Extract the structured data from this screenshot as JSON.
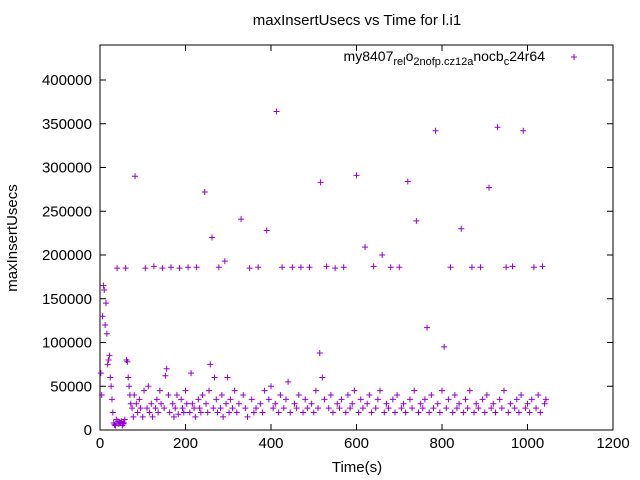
{
  "chart_data": {
    "type": "scatter",
    "title": "maxInsertUsecs vs Time for l.i1",
    "xlabel": "Time(s)",
    "ylabel": "maxInsertUsecs",
    "xlim": [
      0,
      1200
    ],
    "ylim": [
      0,
      440000
    ],
    "xticks": [
      0,
      200,
      400,
      600,
      800,
      1000,
      1200
    ],
    "yticks": [
      0,
      50000,
      100000,
      150000,
      200000,
      250000,
      300000,
      350000,
      400000
    ],
    "grid": false,
    "legend_position": "top-right",
    "marker": "plus",
    "color": "#9400d3",
    "series": [
      {
        "name": "my8407_rel_o2nofp.cz12a_nocb_c24r64",
        "name_parts": [
          {
            "t": "my8407",
            "sub": false
          },
          {
            "t": "rel",
            "sub": true
          },
          {
            "t": "o",
            "sub": false
          },
          {
            "t": "2nofp.cz12a",
            "sub": true
          },
          {
            "t": "nocb",
            "sub": false
          },
          {
            "t": "c",
            "sub": true
          },
          {
            "t": "24r64",
            "sub": false
          }
        ],
        "points": [
          [
            2,
            65000
          ],
          [
            4,
            40000
          ],
          [
            6,
            130000
          ],
          [
            8,
            165000
          ],
          [
            10,
            160000
          ],
          [
            12,
            120000
          ],
          [
            14,
            145000
          ],
          [
            16,
            110000
          ],
          [
            18,
            75000
          ],
          [
            20,
            80000
          ],
          [
            22,
            85000
          ],
          [
            24,
            60000
          ],
          [
            26,
            50000
          ],
          [
            28,
            35000
          ],
          [
            30,
            20000
          ],
          [
            32,
            8000
          ],
          [
            34,
            6000
          ],
          [
            36,
            5000
          ],
          [
            38,
            12000
          ],
          [
            40,
            185000
          ],
          [
            42,
            10000
          ],
          [
            44,
            7000
          ],
          [
            46,
            9000
          ],
          [
            48,
            8000
          ],
          [
            50,
            10000
          ],
          [
            52,
            5000
          ],
          [
            54,
            7000
          ],
          [
            56,
            8000
          ],
          [
            58,
            12000
          ],
          [
            60,
            185000
          ],
          [
            62,
            80000
          ],
          [
            64,
            78000
          ],
          [
            66,
            60000
          ],
          [
            68,
            50000
          ],
          [
            70,
            40000
          ],
          [
            72,
            30000
          ],
          [
            75,
            25000
          ],
          [
            78,
            15000
          ],
          [
            80,
            40000
          ],
          [
            82,
            290000
          ],
          [
            85,
            30000
          ],
          [
            88,
            20000
          ],
          [
            92,
            35000
          ],
          [
            95,
            25000
          ],
          [
            100,
            15000
          ],
          [
            103,
            45000
          ],
          [
            106,
            185000
          ],
          [
            110,
            25000
          ],
          [
            113,
            50000
          ],
          [
            116,
            20000
          ],
          [
            120,
            30000
          ],
          [
            123,
            15000
          ],
          [
            126,
            187000
          ],
          [
            130,
            25000
          ],
          [
            133,
            35000
          ],
          [
            136,
            20000
          ],
          [
            140,
            45000
          ],
          [
            143,
            30000
          ],
          [
            146,
            185000
          ],
          [
            150,
            25000
          ],
          [
            153,
            62000
          ],
          [
            156,
            70000
          ],
          [
            160,
            40000
          ],
          [
            163,
            20000
          ],
          [
            166,
            186000
          ],
          [
            170,
            30000
          ],
          [
            173,
            15000
          ],
          [
            176,
            25000
          ],
          [
            180,
            40000
          ],
          [
            183,
            18000
          ],
          [
            186,
            185000
          ],
          [
            190,
            35000
          ],
          [
            193,
            25000
          ],
          [
            196,
            20000
          ],
          [
            200,
            45000
          ],
          [
            203,
            30000
          ],
          [
            206,
            186000
          ],
          [
            210,
            20000
          ],
          [
            213,
            65000
          ],
          [
            216,
            30000
          ],
          [
            220,
            25000
          ],
          [
            223,
            15000
          ],
          [
            226,
            186000
          ],
          [
            230,
            35000
          ],
          [
            233,
            25000
          ],
          [
            236,
            20000
          ],
          [
            240,
            40000
          ],
          [
            245,
            272000
          ],
          [
            248,
            30000
          ],
          [
            252,
            20000
          ],
          [
            255,
            45000
          ],
          [
            258,
            75000
          ],
          [
            262,
            220000
          ],
          [
            265,
            25000
          ],
          [
            268,
            60000
          ],
          [
            272,
            35000
          ],
          [
            275,
            20000
          ],
          [
            278,
            186000
          ],
          [
            282,
            25000
          ],
          [
            285,
            40000
          ],
          [
            288,
            15000
          ],
          [
            292,
            193000
          ],
          [
            295,
            30000
          ],
          [
            298,
            60000
          ],
          [
            302,
            20000
          ],
          [
            305,
            35000
          ],
          [
            310,
            25000
          ],
          [
            315,
            45000
          ],
          [
            320,
            20000
          ],
          [
            325,
            30000
          ],
          [
            330,
            241000
          ],
          [
            335,
            40000
          ],
          [
            340,
            25000
          ],
          [
            345,
            15000
          ],
          [
            350,
            185000
          ],
          [
            355,
            35000
          ],
          [
            360,
            20000
          ],
          [
            365,
            25000
          ],
          [
            370,
            186000
          ],
          [
            375,
            30000
          ],
          [
            380,
            20000
          ],
          [
            385,
            45000
          ],
          [
            390,
            228000
          ],
          [
            395,
            35000
          ],
          [
            400,
            50000
          ],
          [
            405,
            25000
          ],
          [
            410,
            30000
          ],
          [
            413,
            364000
          ],
          [
            418,
            20000
          ],
          [
            422,
            40000
          ],
          [
            426,
            186000
          ],
          [
            430,
            25000
          ],
          [
            435,
            35000
          ],
          [
            440,
            55000
          ],
          [
            445,
            20000
          ],
          [
            450,
            186000
          ],
          [
            455,
            30000
          ],
          [
            460,
            25000
          ],
          [
            465,
            40000
          ],
          [
            470,
            186000
          ],
          [
            475,
            20000
          ],
          [
            480,
            35000
          ],
          [
            485,
            25000
          ],
          [
            490,
            186000
          ],
          [
            495,
            30000
          ],
          [
            500,
            20000
          ],
          [
            505,
            45000
          ],
          [
            510,
            25000
          ],
          [
            514,
            88000
          ],
          [
            516,
            283000
          ],
          [
            520,
            60000
          ],
          [
            525,
            35000
          ],
          [
            530,
            187000
          ],
          [
            535,
            25000
          ],
          [
            540,
            40000
          ],
          [
            545,
            20000
          ],
          [
            550,
            185000
          ],
          [
            555,
            30000
          ],
          [
            560,
            25000
          ],
          [
            565,
            35000
          ],
          [
            570,
            186000
          ],
          [
            575,
            20000
          ],
          [
            580,
            40000
          ],
          [
            585,
            25000
          ],
          [
            590,
            30000
          ],
          [
            595,
            45000
          ],
          [
            600,
            291000
          ],
          [
            605,
            20000
          ],
          [
            610,
            35000
          ],
          [
            615,
            25000
          ],
          [
            620,
            209000
          ],
          [
            625,
            30000
          ],
          [
            630,
            40000
          ],
          [
            635,
            20000
          ],
          [
            640,
            187000
          ],
          [
            645,
            25000
          ],
          [
            650,
            35000
          ],
          [
            655,
            45000
          ],
          [
            660,
            200000
          ],
          [
            665,
            20000
          ],
          [
            670,
            30000
          ],
          [
            675,
            25000
          ],
          [
            680,
            186000
          ],
          [
            685,
            35000
          ],
          [
            690,
            20000
          ],
          [
            695,
            40000
          ],
          [
            700,
            186000
          ],
          [
            705,
            25000
          ],
          [
            710,
            30000
          ],
          [
            715,
            20000
          ],
          [
            720,
            284000
          ],
          [
            725,
            35000
          ],
          [
            730,
            25000
          ],
          [
            735,
            45000
          ],
          [
            740,
            239000
          ],
          [
            745,
            20000
          ],
          [
            750,
            30000
          ],
          [
            755,
            25000
          ],
          [
            760,
            35000
          ],
          [
            765,
            117000
          ],
          [
            770,
            20000
          ],
          [
            775,
            40000
          ],
          [
            780,
            25000
          ],
          [
            785,
            342000
          ],
          [
            790,
            30000
          ],
          [
            795,
            20000
          ],
          [
            800,
            45000
          ],
          [
            805,
            95000
          ],
          [
            810,
            25000
          ],
          [
            815,
            35000
          ],
          [
            820,
            186000
          ],
          [
            825,
            20000
          ],
          [
            830,
            40000
          ],
          [
            835,
            25000
          ],
          [
            840,
            30000
          ],
          [
            845,
            230000
          ],
          [
            850,
            20000
          ],
          [
            855,
            35000
          ],
          [
            860,
            25000
          ],
          [
            865,
            45000
          ],
          [
            870,
            186000
          ],
          [
            875,
            20000
          ],
          [
            880,
            30000
          ],
          [
            885,
            25000
          ],
          [
            890,
            186000
          ],
          [
            895,
            35000
          ],
          [
            900,
            20000
          ],
          [
            905,
            40000
          ],
          [
            910,
            277000
          ],
          [
            915,
            25000
          ],
          [
            920,
            30000
          ],
          [
            925,
            20000
          ],
          [
            930,
            346000
          ],
          [
            935,
            35000
          ],
          [
            940,
            25000
          ],
          [
            945,
            45000
          ],
          [
            950,
            186000
          ],
          [
            955,
            20000
          ],
          [
            960,
            30000
          ],
          [
            965,
            187000
          ],
          [
            970,
            25000
          ],
          [
            975,
            35000
          ],
          [
            980,
            20000
          ],
          [
            985,
            40000
          ],
          [
            990,
            342000
          ],
          [
            995,
            25000
          ],
          [
            1000,
            30000
          ],
          [
            1005,
            20000
          ],
          [
            1010,
            35000
          ],
          [
            1015,
            186000
          ],
          [
            1020,
            25000
          ],
          [
            1025,
            40000
          ],
          [
            1030,
            20000
          ],
          [
            1035,
            187000
          ],
          [
            1040,
            30000
          ],
          [
            1043,
            35000
          ]
        ]
      }
    ]
  }
}
